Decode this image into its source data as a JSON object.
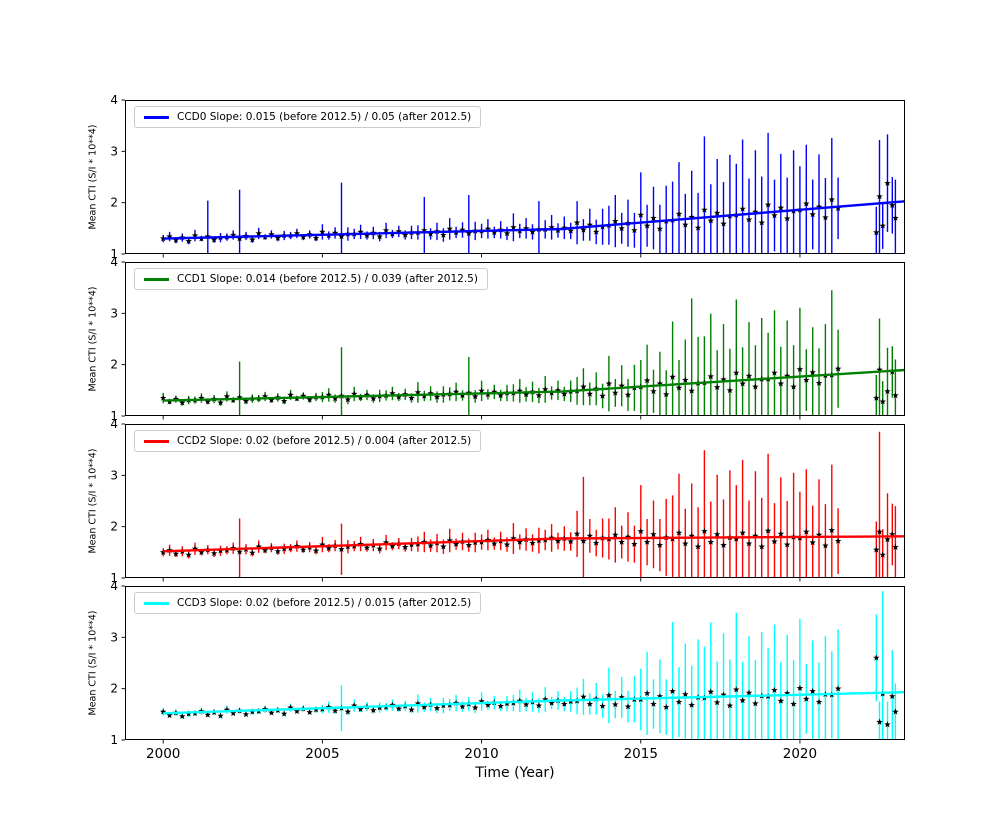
{
  "axes": {
    "xlabel": "Time (Year)",
    "ylabel": "Mean CTI (S/I * 10**4)",
    "xlim": [
      1998.8,
      2023.3
    ],
    "ylim": [
      1,
      4
    ],
    "x_ticks": [
      2000,
      2005,
      2010,
      2015,
      2020
    ],
    "y_ticks": [
      1,
      2,
      3,
      4
    ]
  },
  "chart_data": {
    "type": "scatter",
    "subtype": "errorbar-timeseries",
    "marker": {
      "shape": "star",
      "color": "#000000"
    },
    "x": [
      2000.0,
      2000.2,
      2000.4,
      2000.6,
      2000.8,
      2001.0,
      2001.2,
      2001.4,
      2001.6,
      2001.8,
      2002.0,
      2002.2,
      2002.4,
      2002.6,
      2002.8,
      2003.0,
      2003.2,
      2003.4,
      2003.6,
      2003.8,
      2004.0,
      2004.2,
      2004.4,
      2004.6,
      2004.8,
      2005.0,
      2005.2,
      2005.4,
      2005.6,
      2005.8,
      2006.0,
      2006.2,
      2006.4,
      2006.6,
      2006.8,
      2007.0,
      2007.2,
      2007.4,
      2007.6,
      2007.8,
      2008.0,
      2008.2,
      2008.4,
      2008.6,
      2008.8,
      2009.0,
      2009.2,
      2009.4,
      2009.6,
      2009.8,
      2010.0,
      2010.2,
      2010.4,
      2010.6,
      2010.8,
      2011.0,
      2011.2,
      2011.4,
      2011.6,
      2011.8,
      2012.0,
      2012.2,
      2012.4,
      2012.6,
      2012.8,
      2013.0,
      2013.2,
      2013.4,
      2013.6,
      2013.8,
      2014.0,
      2014.2,
      2014.4,
      2014.6,
      2014.8,
      2015.0,
      2015.2,
      2015.4,
      2015.6,
      2015.8,
      2016.0,
      2016.2,
      2016.4,
      2016.6,
      2016.8,
      2017.0,
      2017.2,
      2017.4,
      2017.6,
      2017.8,
      2018.0,
      2018.2,
      2018.4,
      2018.6,
      2018.8,
      2019.0,
      2019.2,
      2019.4,
      2019.6,
      2019.8,
      2020.0,
      2020.2,
      2020.4,
      2020.6,
      2020.8,
      2021.0,
      2021.2,
      2022.4,
      2022.5,
      2022.6,
      2022.75,
      2022.9,
      2023.0
    ],
    "panels": [
      {
        "name": "CCD0",
        "color": "#0000ff",
        "legend": "CCD0 Slope: 0.015 (before 2012.5) / 0.05 (after 2012.5)",
        "slope_before": 0.015,
        "slope_after": 0.05,
        "break_x": 2012.5,
        "trend": {
          "x": [
            2000,
            2012.5,
            2023.3
          ],
          "y": [
            1.3,
            1.4875,
            2.027
          ]
        },
        "y": [
          1.3,
          1.34,
          1.27,
          1.32,
          1.25,
          1.36,
          1.3,
          1.34,
          1.28,
          1.32,
          1.33,
          1.37,
          1.3,
          1.35,
          1.28,
          1.4,
          1.33,
          1.38,
          1.31,
          1.36,
          1.36,
          1.4,
          1.33,
          1.38,
          1.31,
          1.43,
          1.36,
          1.41,
          1.34,
          1.39,
          1.39,
          1.43,
          1.36,
          1.41,
          1.34,
          1.46,
          1.39,
          1.44,
          1.37,
          1.42,
          1.42,
          1.46,
          1.39,
          1.44,
          1.37,
          1.49,
          1.42,
          1.47,
          1.4,
          1.45,
          1.45,
          1.49,
          1.42,
          1.47,
          1.4,
          1.52,
          1.45,
          1.5,
          1.43,
          1.48,
          1.48,
          1.52,
          1.46,
          1.51,
          1.45,
          1.61,
          1.47,
          1.57,
          1.43,
          1.53,
          1.56,
          1.64,
          1.5,
          1.6,
          1.46,
          1.76,
          1.55,
          1.7,
          1.49,
          1.64,
          1.66,
          1.78,
          1.57,
          1.72,
          1.51,
          1.86,
          1.65,
          1.8,
          1.59,
          1.74,
          1.76,
          1.88,
          1.67,
          1.82,
          1.61,
          1.96,
          1.75,
          1.9,
          1.69,
          1.84,
          1.86,
          1.98,
          1.77,
          1.92,
          1.71,
          2.06,
          1.89,
          1.42,
          2.12,
          1.55,
          2.38,
          1.95,
          1.7
        ],
        "yerr": [
          0.07,
          0.09,
          0.06,
          0.08,
          0.06,
          0.11,
          0.05,
          0.7,
          0.06,
          0.09,
          0.07,
          0.09,
          0.95,
          0.08,
          0.06,
          0.11,
          0.05,
          0.08,
          0.06,
          0.09,
          0.07,
          0.09,
          0.06,
          0.08,
          0.06,
          0.15,
          0.08,
          0.11,
          1.05,
          0.13,
          0.1,
          0.14,
          0.08,
          0.12,
          0.09,
          0.15,
          0.08,
          0.11,
          0.09,
          0.13,
          0.14,
          0.65,
          0.11,
          0.17,
          0.13,
          0.21,
          0.11,
          0.15,
          0.75,
          0.18,
          0.14,
          0.19,
          0.11,
          0.17,
          0.13,
          0.27,
          0.14,
          0.2,
          0.15,
          0.55,
          0.18,
          0.24,
          0.14,
          0.22,
          0.16,
          0.42,
          0.21,
          0.31,
          0.24,
          0.35,
          0.38,
          0.51,
          0.3,
          0.46,
          0.34,
          0.83,
          0.41,
          0.61,
          0.47,
          0.69,
          0.75,
          1.01,
          0.6,
          0.9,
          0.68,
          1.43,
          0.71,
          1.05,
          0.81,
          1.19,
          1.0,
          1.35,
          0.8,
          1.2,
          0.9,
          1.4,
          0.7,
          1.05,
          0.8,
          1.18,
          0.85,
          1.15,
          0.68,
          1.02,
          0.77,
          1.2,
          0.6,
          0.5,
          1.1,
          0.45,
          0.95,
          0.55,
          0.75
        ]
      },
      {
        "name": "CCD1",
        "color": "#008000",
        "legend": "CCD1 Slope: 0.014 (before 2012.5) / 0.039 (after 2012.5)",
        "slope_before": 0.014,
        "slope_after": 0.039,
        "break_x": 2012.5,
        "trend": {
          "x": [
            2000,
            2012.5,
            2023.3
          ],
          "y": [
            1.3,
            1.475,
            1.896
          ]
        },
        "y": [
          1.35,
          1.28,
          1.33,
          1.26,
          1.31,
          1.31,
          1.35,
          1.28,
          1.33,
          1.26,
          1.38,
          1.31,
          1.36,
          1.29,
          1.34,
          1.34,
          1.38,
          1.31,
          1.36,
          1.29,
          1.41,
          1.34,
          1.39,
          1.32,
          1.37,
          1.37,
          1.41,
          1.34,
          1.39,
          1.32,
          1.43,
          1.36,
          1.41,
          1.34,
          1.39,
          1.4,
          1.44,
          1.37,
          1.42,
          1.35,
          1.46,
          1.39,
          1.44,
          1.37,
          1.42,
          1.43,
          1.47,
          1.4,
          1.45,
          1.38,
          1.49,
          1.42,
          1.47,
          1.4,
          1.45,
          1.45,
          1.49,
          1.42,
          1.47,
          1.4,
          1.52,
          1.45,
          1.5,
          1.43,
          1.48,
          1.49,
          1.57,
          1.43,
          1.53,
          1.39,
          1.63,
          1.45,
          1.59,
          1.41,
          1.55,
          1.57,
          1.69,
          1.48,
          1.63,
          1.42,
          1.76,
          1.55,
          1.7,
          1.49,
          1.64,
          1.65,
          1.77,
          1.56,
          1.71,
          1.5,
          1.84,
          1.63,
          1.78,
          1.57,
          1.72,
          1.72,
          1.84,
          1.63,
          1.78,
          1.57,
          1.91,
          1.7,
          1.85,
          1.64,
          1.79,
          1.8,
          1.92,
          1.35,
          1.9,
          1.28,
          1.48,
          1.86,
          1.4
        ],
        "yerr": [
          0.1,
          0.05,
          0.07,
          0.06,
          0.08,
          0.07,
          0.09,
          0.05,
          0.08,
          0.06,
          0.1,
          0.05,
          0.7,
          0.06,
          0.08,
          0.07,
          0.09,
          0.05,
          0.08,
          0.06,
          0.1,
          0.05,
          0.07,
          0.06,
          0.08,
          0.1,
          0.13,
          0.08,
          0.95,
          0.09,
          0.14,
          0.07,
          0.1,
          0.08,
          0.12,
          0.1,
          0.13,
          0.08,
          0.11,
          0.09,
          0.2,
          0.1,
          0.14,
          0.11,
          0.16,
          0.13,
          0.18,
          0.1,
          0.7,
          0.12,
          0.2,
          0.1,
          0.14,
          0.11,
          0.16,
          0.17,
          0.23,
          0.14,
          0.2,
          0.15,
          0.26,
          0.13,
          0.19,
          0.14,
          0.21,
          0.27,
          0.36,
          0.22,
          0.32,
          0.24,
          0.54,
          0.27,
          0.4,
          0.31,
          0.45,
          0.52,
          0.7,
          0.42,
          0.62,
          0.47,
          1.08,
          0.54,
          0.79,
          1.8,
          0.9,
          0.9,
          1.22,
          0.72,
          1.08,
          0.81,
          1.43,
          0.71,
          1.05,
          0.81,
          1.19,
          0.9,
          1.22,
          0.72,
          1.08,
          0.81,
          1.2,
          0.6,
          0.88,
          0.68,
          1.0,
          1.65,
          0.76,
          0.45,
          1.0,
          0.4,
          0.85,
          0.5,
          0.7
        ]
      },
      {
        "name": "CCD2",
        "color": "#ff0000",
        "legend": "CCD2 Slope: 0.02 (before 2012.5) / 0.004 (after 2012.5)",
        "slope_before": 0.02,
        "slope_after": 0.004,
        "break_x": 2012.5,
        "trend": {
          "x": [
            2000,
            2012.5,
            2023.3
          ],
          "y": [
            1.52,
            1.77,
            1.813
          ]
        },
        "y": [
          1.5,
          1.54,
          1.47,
          1.52,
          1.45,
          1.57,
          1.5,
          1.55,
          1.48,
          1.53,
          1.54,
          1.58,
          1.51,
          1.56,
          1.49,
          1.61,
          1.54,
          1.59,
          1.52,
          1.57,
          1.58,
          1.62,
          1.55,
          1.6,
          1.53,
          1.65,
          1.58,
          1.63,
          1.56,
          1.61,
          1.62,
          1.66,
          1.59,
          1.64,
          1.57,
          1.69,
          1.62,
          1.67,
          1.6,
          1.65,
          1.66,
          1.7,
          1.63,
          1.68,
          1.61,
          1.73,
          1.66,
          1.71,
          1.64,
          1.69,
          1.7,
          1.74,
          1.67,
          1.72,
          1.65,
          1.77,
          1.7,
          1.75,
          1.68,
          1.73,
          1.74,
          1.78,
          1.72,
          1.77,
          1.71,
          1.86,
          1.72,
          1.82,
          1.68,
          1.78,
          1.76,
          1.84,
          1.7,
          1.8,
          1.66,
          1.91,
          1.7,
          1.85,
          1.64,
          1.79,
          1.76,
          1.88,
          1.67,
          1.82,
          1.61,
          1.91,
          1.7,
          1.85,
          1.64,
          1.79,
          1.76,
          1.88,
          1.67,
          1.82,
          1.61,
          1.92,
          1.71,
          1.86,
          1.65,
          1.8,
          1.78,
          1.9,
          1.69,
          1.84,
          1.63,
          1.93,
          1.72,
          1.55,
          1.9,
          1.45,
          1.75,
          1.85,
          1.6
        ],
        "yerr": [
          0.08,
          0.11,
          0.06,
          0.1,
          0.07,
          0.12,
          0.06,
          0.09,
          0.07,
          0.1,
          0.08,
          0.11,
          0.65,
          0.1,
          0.07,
          0.12,
          0.06,
          0.09,
          0.07,
          0.1,
          0.08,
          0.11,
          0.06,
          0.1,
          0.07,
          0.15,
          0.08,
          0.11,
          0.5,
          0.13,
          0.1,
          0.14,
          0.08,
          0.12,
          0.09,
          0.15,
          0.08,
          0.11,
          0.09,
          0.13,
          0.15,
          0.2,
          0.12,
          0.18,
          0.14,
          0.23,
          0.11,
          0.17,
          0.13,
          0.19,
          0.15,
          0.2,
          0.12,
          0.18,
          0.14,
          0.3,
          0.15,
          0.22,
          0.17,
          0.25,
          0.2,
          0.27,
          0.16,
          0.24,
          0.18,
          0.45,
          1.25,
          0.33,
          0.26,
          0.38,
          0.4,
          0.54,
          0.32,
          0.48,
          0.36,
          0.9,
          0.45,
          0.66,
          0.51,
          0.75,
          0.85,
          1.15,
          0.68,
          1.02,
          0.77,
          1.58,
          0.79,
          1.16,
          0.89,
          1.31,
          1.05,
          1.42,
          0.84,
          1.26,
          0.95,
          1.5,
          0.75,
          1.1,
          0.85,
          1.25,
          0.9,
          1.22,
          0.72,
          1.08,
          0.81,
          1.28,
          0.64,
          0.55,
          1.95,
          0.5,
          0.9,
          0.6,
          0.8
        ]
      },
      {
        "name": "CCD3",
        "color": "#00ffff",
        "legend": "CCD3 Slope: 0.02 (before 2012.5) / 0.015 (after 2012.5)",
        "slope_before": 0.02,
        "slope_after": 0.015,
        "break_x": 2012.5,
        "trend": {
          "x": [
            2000,
            2012.5,
            2023.3
          ],
          "y": [
            1.52,
            1.77,
            1.932
          ]
        },
        "y": [
          1.55,
          1.48,
          1.53,
          1.46,
          1.51,
          1.52,
          1.56,
          1.49,
          1.54,
          1.47,
          1.59,
          1.52,
          1.57,
          1.5,
          1.55,
          1.56,
          1.6,
          1.53,
          1.58,
          1.51,
          1.63,
          1.56,
          1.61,
          1.54,
          1.59,
          1.6,
          1.64,
          1.57,
          1.62,
          1.55,
          1.67,
          1.6,
          1.65,
          1.58,
          1.63,
          1.64,
          1.68,
          1.61,
          1.66,
          1.59,
          1.71,
          1.64,
          1.69,
          1.62,
          1.67,
          1.68,
          1.72,
          1.65,
          1.7,
          1.63,
          1.75,
          1.68,
          1.73,
          1.66,
          1.71,
          1.72,
          1.76,
          1.69,
          1.74,
          1.67,
          1.79,
          1.72,
          1.77,
          1.7,
          1.75,
          1.76,
          1.84,
          1.7,
          1.8,
          1.66,
          1.87,
          1.69,
          1.83,
          1.65,
          1.79,
          1.79,
          1.91,
          1.7,
          1.85,
          1.64,
          1.95,
          1.74,
          1.89,
          1.68,
          1.83,
          1.82,
          1.94,
          1.73,
          1.88,
          1.67,
          1.98,
          1.77,
          1.92,
          1.71,
          1.86,
          1.85,
          1.97,
          1.76,
          1.91,
          1.7,
          2.01,
          1.8,
          1.95,
          1.74,
          1.89,
          1.88,
          2.0,
          2.6,
          1.35,
          1.9,
          1.3,
          1.85,
          1.55
        ],
        "yerr": [
          0.08,
          0.04,
          0.06,
          0.04,
          0.06,
          0.05,
          0.07,
          0.04,
          0.06,
          0.05,
          0.08,
          0.04,
          0.06,
          0.04,
          0.06,
          0.05,
          0.07,
          0.04,
          0.06,
          0.05,
          0.08,
          0.04,
          0.06,
          0.04,
          0.06,
          0.08,
          0.11,
          0.06,
          0.45,
          0.07,
          0.12,
          0.06,
          0.09,
          0.07,
          0.1,
          0.08,
          0.11,
          0.06,
          0.1,
          0.07,
          0.18,
          0.09,
          0.13,
          0.1,
          0.15,
          0.12,
          0.16,
          0.1,
          0.14,
          0.11,
          0.18,
          0.09,
          0.13,
          0.1,
          0.15,
          0.16,
          0.22,
          0.13,
          0.19,
          0.14,
          0.24,
          0.12,
          0.18,
          0.14,
          0.2,
          0.26,
          0.35,
          0.21,
          0.31,
          0.23,
          0.54,
          0.27,
          0.4,
          0.31,
          0.45,
          0.6,
          0.81,
          0.48,
          0.72,
          0.54,
          1.35,
          0.68,
          0.99,
          0.77,
          1.13,
          1.0,
          1.35,
          0.8,
          1.2,
          0.9,
          1.5,
          0.75,
          1.1,
          0.85,
          1.25,
          0.95,
          1.28,
          0.76,
          1.14,
          0.86,
          1.35,
          0.68,
          0.99,
          0.77,
          1.13,
          0.85,
          1.15,
          0.85,
          0.4,
          2.0,
          0.45,
          0.9,
          0.55
        ]
      }
    ]
  }
}
